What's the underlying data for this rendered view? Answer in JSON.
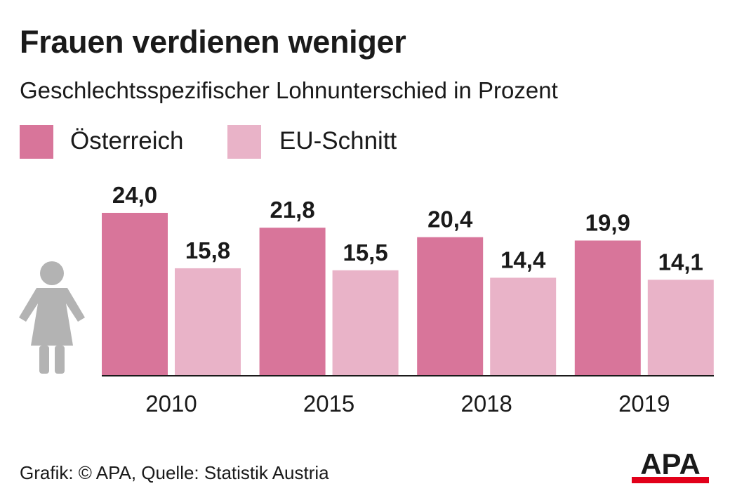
{
  "title": "Frauen verdienen weniger",
  "subtitle": "Geschlechtsspezifischer Lohnunterschied in Prozent",
  "source": "Grafik: © APA, Quelle: Statistik Austria",
  "logo_text": "APA",
  "icon": "woman-icon",
  "colors": {
    "austria": "#d8759a",
    "eu": "#e9b3c8",
    "axis": "#1a1a1a",
    "icon": "#b3b3b3",
    "logo_bar": "#e2001a"
  },
  "chart_data": {
    "type": "bar",
    "title": "Frauen verdienen weniger",
    "subtitle": "Geschlechtsspezifischer Lohnunterschied in Prozent",
    "categories": [
      "2010",
      "2015",
      "2018",
      "2019"
    ],
    "series": [
      {
        "name": "Österreich",
        "values": [
          24.0,
          21.8,
          20.4,
          19.9
        ],
        "labels": [
          "24,0",
          "21,8",
          "20,4",
          "19,9"
        ]
      },
      {
        "name": "EU-Schnitt",
        "values": [
          15.8,
          15.5,
          14.4,
          14.1
        ],
        "labels": [
          "15,8",
          "15,5",
          "14,4",
          "14,1"
        ]
      }
    ],
    "ylim": [
      0,
      24.0
    ],
    "grid": false,
    "legend": "top-left"
  }
}
